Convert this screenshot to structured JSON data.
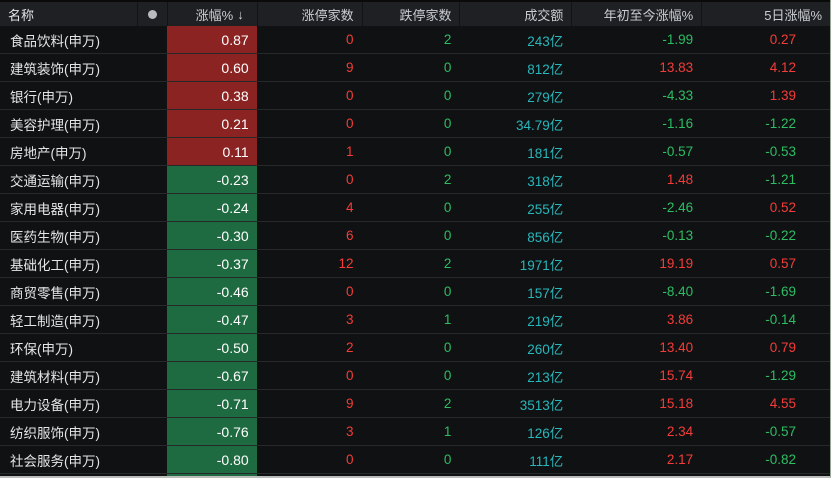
{
  "colors": {
    "up_red_text": "#f53c39",
    "down_green_text": "#2dbd64",
    "turnover_cyan_text": "#29b6bb",
    "up_cell_bg": "#8b2322",
    "down_cell_bg": "#1f6b41",
    "header_bg": "#1e2023",
    "row_bg": "#101112",
    "sort_arrow_color": "#e8502b"
  },
  "table": {
    "columns": [
      {
        "key": "name",
        "label": "名称"
      },
      {
        "key": "marker",
        "label": "",
        "icon": "dot"
      },
      {
        "key": "change",
        "label": "涨幅%",
        "sorted": "desc",
        "sort_icon": "↓"
      },
      {
        "key": "limit_up",
        "label": "涨停家数"
      },
      {
        "key": "limit_down",
        "label": "跌停家数"
      },
      {
        "key": "turnover",
        "label": "成交额"
      },
      {
        "key": "ytd",
        "label": "年初至今涨幅%"
      },
      {
        "key": "d5",
        "label": "5日涨幅%"
      }
    ],
    "rows": [
      {
        "name": "食品饮料(申万)",
        "change": "0.87",
        "limit_up": "0",
        "limit_down": "2",
        "turnover": "243亿",
        "ytd": "-1.99",
        "d5": "0.27"
      },
      {
        "name": "建筑装饰(申万)",
        "change": "0.60",
        "limit_up": "9",
        "limit_down": "0",
        "turnover": "812亿",
        "ytd": "13.83",
        "d5": "4.12"
      },
      {
        "name": "银行(申万)",
        "change": "0.38",
        "limit_up": "0",
        "limit_down": "0",
        "turnover": "279亿",
        "ytd": "-4.33",
        "d5": "1.39"
      },
      {
        "name": "美容护理(申万)",
        "change": "0.21",
        "limit_up": "0",
        "limit_down": "0",
        "turnover": "34.79亿",
        "ytd": "-1.16",
        "d5": "-1.22"
      },
      {
        "name": "房地产(申万)",
        "change": "0.11",
        "limit_up": "1",
        "limit_down": "0",
        "turnover": "181亿",
        "ytd": "-0.57",
        "d5": "-0.53"
      },
      {
        "name": "交通运输(申万)",
        "change": "-0.23",
        "limit_up": "0",
        "limit_down": "2",
        "turnover": "318亿",
        "ytd": "1.48",
        "d5": "-1.21"
      },
      {
        "name": "家用电器(申万)",
        "change": "-0.24",
        "limit_up": "4",
        "limit_down": "0",
        "turnover": "255亿",
        "ytd": "-2.46",
        "d5": "0.52"
      },
      {
        "name": "医药生物(申万)",
        "change": "-0.30",
        "limit_up": "6",
        "limit_down": "0",
        "turnover": "856亿",
        "ytd": "-0.13",
        "d5": "-0.22"
      },
      {
        "name": "基础化工(申万)",
        "change": "-0.37",
        "limit_up": "12",
        "limit_down": "2",
        "turnover": "1971亿",
        "ytd": "19.19",
        "d5": "0.57"
      },
      {
        "name": "商贸零售(申万)",
        "change": "-0.46",
        "limit_up": "0",
        "limit_down": "0",
        "turnover": "157亿",
        "ytd": "-8.40",
        "d5": "-1.69"
      },
      {
        "name": "轻工制造(申万)",
        "change": "-0.47",
        "limit_up": "3",
        "limit_down": "1",
        "turnover": "219亿",
        "ytd": "3.86",
        "d5": "-0.14"
      },
      {
        "name": "环保(申万)",
        "change": "-0.50",
        "limit_up": "2",
        "limit_down": "0",
        "turnover": "260亿",
        "ytd": "13.40",
        "d5": "0.79"
      },
      {
        "name": "建筑材料(申万)",
        "change": "-0.67",
        "limit_up": "0",
        "limit_down": "0",
        "turnover": "213亿",
        "ytd": "15.74",
        "d5": "-1.29"
      },
      {
        "name": "电力设备(申万)",
        "change": "-0.71",
        "limit_up": "9",
        "limit_down": "2",
        "turnover": "3513亿",
        "ytd": "15.18",
        "d5": "4.55"
      },
      {
        "name": "纺织服饰(申万)",
        "change": "-0.76",
        "limit_up": "3",
        "limit_down": "1",
        "turnover": "126亿",
        "ytd": "2.34",
        "d5": "-0.57"
      },
      {
        "name": "社会服务(申万)",
        "change": "-0.80",
        "limit_up": "0",
        "limit_down": "0",
        "turnover": "111亿",
        "ytd": "2.17",
        "d5": "-0.82"
      }
    ],
    "partial_next_row": {
      "change_sign": "negative"
    }
  }
}
